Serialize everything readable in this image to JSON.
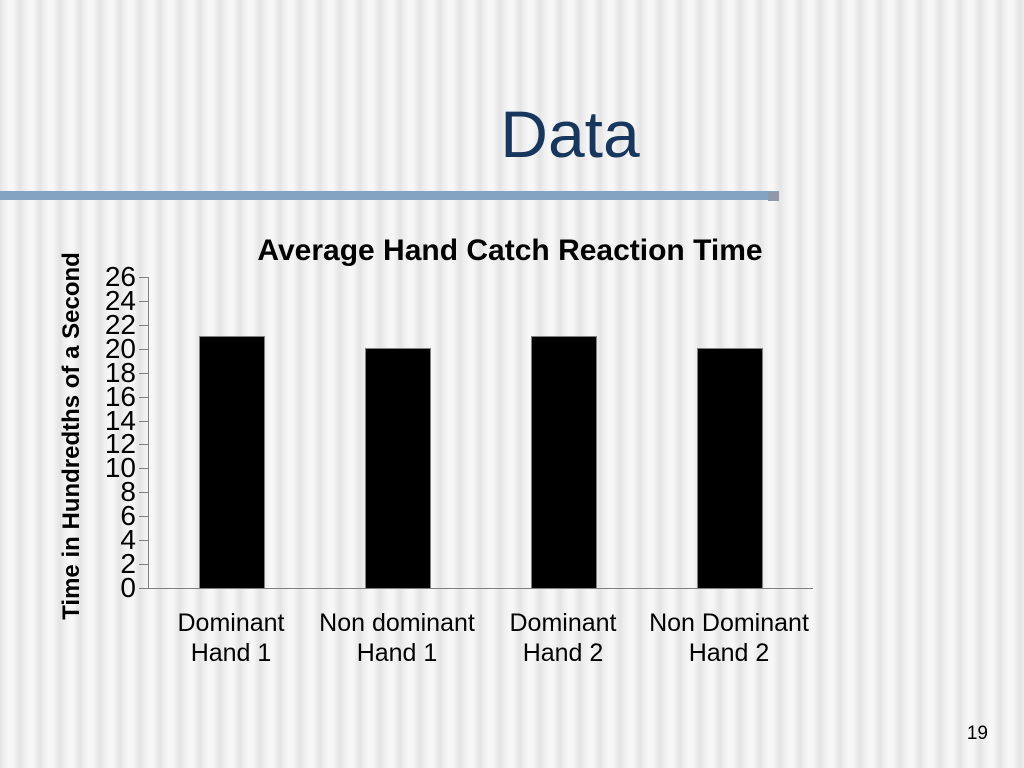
{
  "slide": {
    "title": "Data",
    "title_color": "#17375e",
    "accent_line_color": "#84a2c2",
    "page_number": "19"
  },
  "chart_data": {
    "type": "bar",
    "title": "Average Hand Catch Reaction Time",
    "ylabel": "Time in Hundredths of a Second",
    "xlabel": "",
    "categories": [
      "Dominant\nHand 1",
      "Non dominant\nHand 1",
      "Dominant\nHand 2",
      "Non Dominant\nHand 2"
    ],
    "values": [
      21,
      20,
      21,
      20
    ],
    "ylim": [
      0,
      26
    ],
    "yticks": [
      0,
      2,
      4,
      6,
      8,
      10,
      12,
      14,
      16,
      18,
      20,
      22,
      24,
      26
    ],
    "bar_color": "#000000",
    "axis_color": "#808080",
    "grid": false,
    "legend": false
  }
}
